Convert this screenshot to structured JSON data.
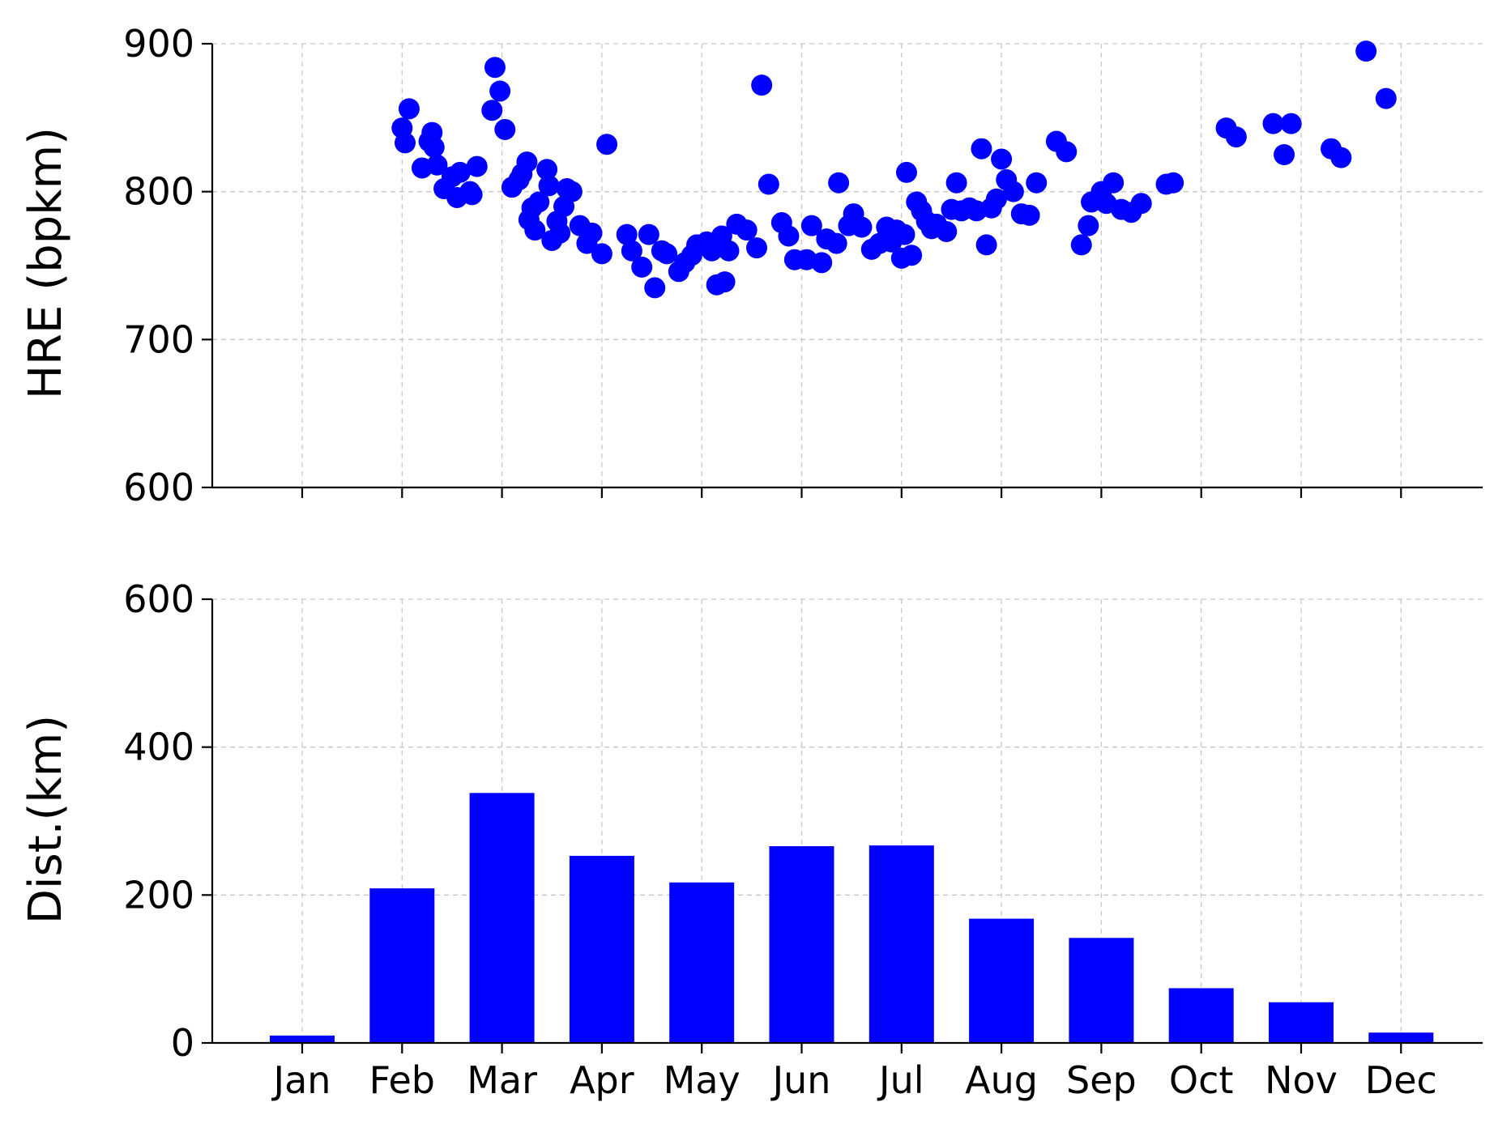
{
  "chart_data": [
    {
      "type": "scatter",
      "ylabel": "HRE (bpkm)",
      "xlabel": "",
      "ylim": [
        600,
        900
      ],
      "yticks": [
        600,
        700,
        800,
        900
      ],
      "xlim": [
        -1,
        12
      ],
      "grid": true,
      "color": "#0000ff",
      "x_note": "x in months (0 = Jan start of month tick, fractional = day within month)",
      "points": [
        [
          1.0,
          843
        ],
        [
          1.03,
          833
        ],
        [
          1.07,
          856
        ],
        [
          1.2,
          816
        ],
        [
          1.27,
          834
        ],
        [
          1.3,
          840
        ],
        [
          1.32,
          830
        ],
        [
          1.35,
          818
        ],
        [
          1.42,
          802
        ],
        [
          1.5,
          810
        ],
        [
          1.55,
          796
        ],
        [
          1.58,
          813
        ],
        [
          1.68,
          800
        ],
        [
          1.7,
          798
        ],
        [
          1.75,
          817
        ],
        [
          1.9,
          855
        ],
        [
          1.93,
          884
        ],
        [
          1.98,
          868
        ],
        [
          2.03,
          842
        ],
        [
          2.1,
          803
        ],
        [
          2.17,
          808
        ],
        [
          2.2,
          812
        ],
        [
          2.25,
          820
        ],
        [
          2.27,
          781
        ],
        [
          2.3,
          789
        ],
        [
          2.33,
          774
        ],
        [
          2.37,
          793
        ],
        [
          2.45,
          815
        ],
        [
          2.47,
          804
        ],
        [
          2.5,
          767
        ],
        [
          2.55,
          780
        ],
        [
          2.58,
          772
        ],
        [
          2.62,
          790
        ],
        [
          2.65,
          802
        ],
        [
          2.7,
          800
        ],
        [
          2.78,
          777
        ],
        [
          2.85,
          765
        ],
        [
          2.9,
          772
        ],
        [
          3.0,
          758
        ],
        [
          3.05,
          832
        ],
        [
          3.25,
          771
        ],
        [
          3.3,
          760
        ],
        [
          3.4,
          749
        ],
        [
          3.47,
          771
        ],
        [
          3.53,
          735
        ],
        [
          3.6,
          760
        ],
        [
          3.65,
          758
        ],
        [
          3.77,
          746
        ],
        [
          3.83,
          752
        ],
        [
          3.9,
          757
        ],
        [
          3.95,
          764
        ],
        [
          4.05,
          766
        ],
        [
          4.1,
          760
        ],
        [
          4.15,
          737
        ],
        [
          4.2,
          770
        ],
        [
          4.23,
          739
        ],
        [
          4.27,
          760
        ],
        [
          4.35,
          778
        ],
        [
          4.45,
          774
        ],
        [
          4.55,
          762
        ],
        [
          4.6,
          872
        ],
        [
          4.67,
          805
        ],
        [
          4.8,
          779
        ],
        [
          4.87,
          770
        ],
        [
          4.93,
          754
        ],
        [
          5.05,
          754
        ],
        [
          5.1,
          777
        ],
        [
          5.2,
          752
        ],
        [
          5.25,
          768
        ],
        [
          5.35,
          765
        ],
        [
          5.37,
          806
        ],
        [
          5.47,
          777
        ],
        [
          5.52,
          785
        ],
        [
          5.6,
          776
        ],
        [
          5.7,
          761
        ],
        [
          5.78,
          765
        ],
        [
          5.85,
          776
        ],
        [
          5.9,
          766
        ],
        [
          5.95,
          774
        ],
        [
          6.0,
          755
        ],
        [
          6.03,
          771
        ],
        [
          6.05,
          813
        ],
        [
          6.1,
          757
        ],
        [
          6.15,
          793
        ],
        [
          6.2,
          787
        ],
        [
          6.25,
          780
        ],
        [
          6.3,
          775
        ],
        [
          6.35,
          778
        ],
        [
          6.45,
          773
        ],
        [
          6.5,
          788
        ],
        [
          6.55,
          806
        ],
        [
          6.6,
          787
        ],
        [
          6.68,
          789
        ],
        [
          6.75,
          787
        ],
        [
          6.8,
          829
        ],
        [
          6.85,
          764
        ],
        [
          6.9,
          789
        ],
        [
          6.95,
          795
        ],
        [
          7.0,
          822
        ],
        [
          7.05,
          808
        ],
        [
          7.12,
          800
        ],
        [
          7.2,
          785
        ],
        [
          7.28,
          784
        ],
        [
          7.35,
          806
        ],
        [
          7.55,
          834
        ],
        [
          7.65,
          827
        ],
        [
          7.8,
          764
        ],
        [
          7.87,
          777
        ],
        [
          7.9,
          793
        ],
        [
          8.0,
          800
        ],
        [
          8.05,
          792
        ],
        [
          8.12,
          806
        ],
        [
          8.2,
          788
        ],
        [
          8.3,
          786
        ],
        [
          8.4,
          792
        ],
        [
          8.65,
          805
        ],
        [
          8.72,
          806
        ],
        [
          9.25,
          843
        ],
        [
          9.35,
          837
        ],
        [
          9.72,
          846
        ],
        [
          9.83,
          825
        ],
        [
          9.9,
          846
        ],
        [
          10.3,
          829
        ],
        [
          10.4,
          823
        ],
        [
          10.65,
          895
        ],
        [
          10.85,
          863
        ]
      ]
    },
    {
      "type": "bar",
      "ylabel": "Dist.(km)",
      "xlabel": "",
      "ylim": [
        0,
        600
      ],
      "yticks": [
        0,
        200,
        400,
        600
      ],
      "grid": true,
      "color": "#0000ff",
      "categories": [
        "Jan",
        "Feb",
        "Mar",
        "Apr",
        "May",
        "Jun",
        "Jul",
        "Aug",
        "Sep",
        "Oct",
        "Nov",
        "Dec"
      ],
      "values": [
        10,
        209,
        338,
        253,
        217,
        266,
        267,
        168,
        142,
        74,
        55,
        14
      ]
    }
  ]
}
